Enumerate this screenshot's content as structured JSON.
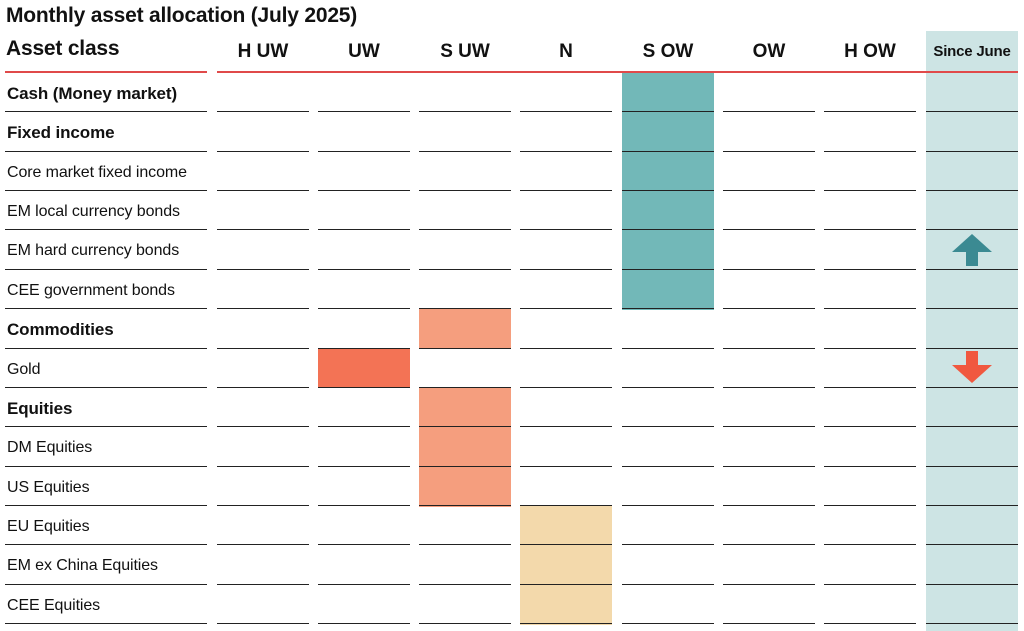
{
  "title": "Monthly asset allocation (July 2025)",
  "colors": {
    "overweight": "#72b8b8",
    "underweight_slight": "#f59e7e",
    "underweight": "#f37355",
    "neutral": "#f3d9ab",
    "since_column_bg": "#cde4e4",
    "arrow_up": "#3b8a92",
    "arrow_down": "#f0583f"
  },
  "chart_data": {
    "type": "table",
    "title": "Monthly asset allocation (July 2025)",
    "row_header": "Asset class",
    "columns": [
      "H UW",
      "UW",
      "S UW",
      "N",
      "S OW",
      "OW",
      "H OW"
    ],
    "change_column": "Since June",
    "rows": [
      {
        "label": "Cash (Money market)",
        "bold": true,
        "position": "S OW",
        "change": ""
      },
      {
        "label": "Fixed income",
        "bold": true,
        "position": "S OW",
        "change": ""
      },
      {
        "label": "Core market fixed income",
        "bold": false,
        "position": "S OW",
        "change": ""
      },
      {
        "label": "EM local currency bonds",
        "bold": false,
        "position": "S OW",
        "change": ""
      },
      {
        "label": "EM hard currency bonds",
        "bold": false,
        "position": "S OW",
        "change": "up"
      },
      {
        "label": "CEE government bonds",
        "bold": false,
        "position": "S OW",
        "change": ""
      },
      {
        "label": "Commodities",
        "bold": true,
        "position": "S UW",
        "change": ""
      },
      {
        "label": "Gold",
        "bold": false,
        "position": "UW",
        "change": "down"
      },
      {
        "label": "Equities",
        "bold": true,
        "position": "S UW",
        "change": ""
      },
      {
        "label": "DM Equities",
        "bold": false,
        "position": "S UW",
        "change": ""
      },
      {
        "label": "US Equities",
        "bold": false,
        "position": "S UW",
        "change": ""
      },
      {
        "label": "EU Equities",
        "bold": false,
        "position": "N",
        "change": ""
      },
      {
        "label": "EM ex China Equities",
        "bold": false,
        "position": "N",
        "change": ""
      },
      {
        "label": "CEE Equities",
        "bold": false,
        "position": "N",
        "change": ""
      }
    ]
  }
}
